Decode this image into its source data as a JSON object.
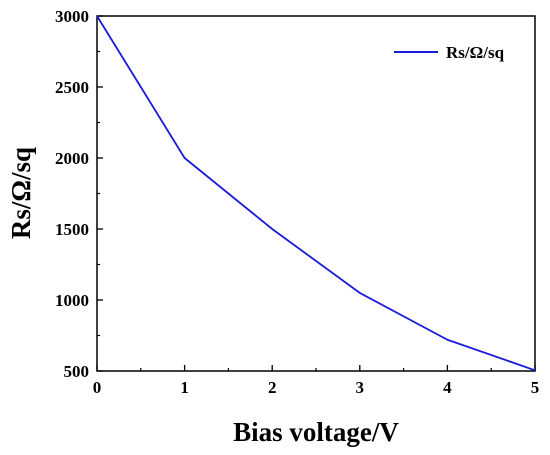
{
  "chart_data": {
    "type": "line",
    "title": "",
    "xlabel": "Bias voltage/V",
    "ylabel": "Rs/Ω/sq",
    "xlim": [
      0,
      5
    ],
    "ylim": [
      500,
      3000
    ],
    "xticks": [
      0,
      1,
      2,
      3,
      4,
      5
    ],
    "yticks": [
      500,
      1000,
      1500,
      2000,
      2500,
      3000
    ],
    "xtick_labels": [
      "0",
      "1",
      "2",
      "3",
      "4",
      "5"
    ],
    "ytick_labels": [
      "500",
      "1000",
      "1500",
      "2000",
      "2500",
      "3000"
    ],
    "grid": false,
    "legend_position": "top-right",
    "series": [
      {
        "name": "Rs/Ω/sq",
        "color": "#1a1adb",
        "x": [
          0,
          1,
          2,
          3,
          4,
          5
        ],
        "y": [
          3000,
          2000,
          1500,
          1050,
          720,
          505
        ]
      }
    ]
  }
}
